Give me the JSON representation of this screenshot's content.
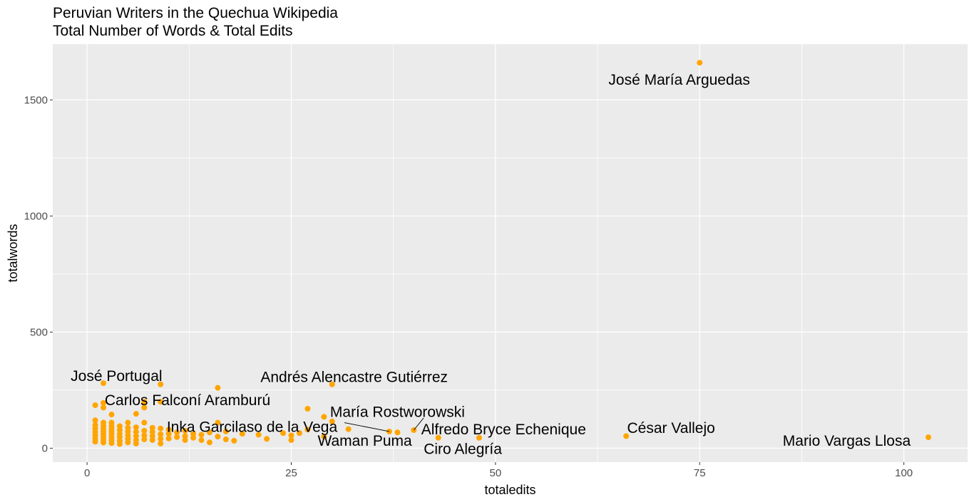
{
  "chart_data": {
    "type": "scatter",
    "title": "Peruvian Writers in the Quechua Wikipedia",
    "subtitle": "Total Number of Words & Total Edits",
    "xlabel": "totaledits",
    "ylabel": "totalwords",
    "xlim": [
      -4.2,
      107.8
    ],
    "ylim": [
      -60,
      1740
    ],
    "x_ticks": [
      0,
      25,
      50,
      75,
      100
    ],
    "y_ticks": [
      0,
      500,
      1000,
      1500
    ],
    "grid": true,
    "point_color": "#FFA500",
    "panel_color": "#EBEBEB",
    "grid_color": "#FFFFFF",
    "points": [
      {
        "x": 75,
        "y": 1660
      },
      {
        "x": 103,
        "y": 47
      },
      {
        "x": 66,
        "y": 52
      },
      {
        "x": 48,
        "y": 45
      },
      {
        "x": 43,
        "y": 45
      },
      {
        "x": 40,
        "y": 78
      },
      {
        "x": 38,
        "y": 68
      },
      {
        "x": 37,
        "y": 72
      },
      {
        "x": 32,
        "y": 82
      },
      {
        "x": 30,
        "y": 275
      },
      {
        "x": 30,
        "y": 115
      },
      {
        "x": 29,
        "y": 135
      },
      {
        "x": 29,
        "y": 50
      },
      {
        "x": 27,
        "y": 170
      },
      {
        "x": 27,
        "y": 80
      },
      {
        "x": 26,
        "y": 65
      },
      {
        "x": 25,
        "y": 55
      },
      {
        "x": 25,
        "y": 35
      },
      {
        "x": 24,
        "y": 65
      },
      {
        "x": 22,
        "y": 40
      },
      {
        "x": 21,
        "y": 58
      },
      {
        "x": 19,
        "y": 62
      },
      {
        "x": 18,
        "y": 32
      },
      {
        "x": 17,
        "y": 72
      },
      {
        "x": 17,
        "y": 38
      },
      {
        "x": 16,
        "y": 260
      },
      {
        "x": 16,
        "y": 110
      },
      {
        "x": 16,
        "y": 50
      },
      {
        "x": 15,
        "y": 68
      },
      {
        "x": 15,
        "y": 25
      },
      {
        "x": 14,
        "y": 58
      },
      {
        "x": 14,
        "y": 35
      },
      {
        "x": 13,
        "y": 62
      },
      {
        "x": 13,
        "y": 45
      },
      {
        "x": 12,
        "y": 75
      },
      {
        "x": 12,
        "y": 52
      },
      {
        "x": 12,
        "y": 35
      },
      {
        "x": 11,
        "y": 68
      },
      {
        "x": 11,
        "y": 48
      },
      {
        "x": 10,
        "y": 80
      },
      {
        "x": 10,
        "y": 62
      },
      {
        "x": 10,
        "y": 42
      },
      {
        "x": 9,
        "y": 275
      },
      {
        "x": 9,
        "y": 200
      },
      {
        "x": 9,
        "y": 85
      },
      {
        "x": 9,
        "y": 60
      },
      {
        "x": 9,
        "y": 40
      },
      {
        "x": 9,
        "y": 20
      },
      {
        "x": 8,
        "y": 88
      },
      {
        "x": 8,
        "y": 70
      },
      {
        "x": 8,
        "y": 52
      },
      {
        "x": 8,
        "y": 35
      },
      {
        "x": 7,
        "y": 200
      },
      {
        "x": 7,
        "y": 175
      },
      {
        "x": 7,
        "y": 110
      },
      {
        "x": 7,
        "y": 75
      },
      {
        "x": 7,
        "y": 55
      },
      {
        "x": 7,
        "y": 38
      },
      {
        "x": 6,
        "y": 148
      },
      {
        "x": 6,
        "y": 90
      },
      {
        "x": 6,
        "y": 70
      },
      {
        "x": 6,
        "y": 52
      },
      {
        "x": 6,
        "y": 35
      },
      {
        "x": 6,
        "y": 20
      },
      {
        "x": 5,
        "y": 110
      },
      {
        "x": 5,
        "y": 88
      },
      {
        "x": 5,
        "y": 72
      },
      {
        "x": 5,
        "y": 55
      },
      {
        "x": 5,
        "y": 40
      },
      {
        "x": 5,
        "y": 25
      },
      {
        "x": 4,
        "y": 95
      },
      {
        "x": 4,
        "y": 78
      },
      {
        "x": 4,
        "y": 62
      },
      {
        "x": 4,
        "y": 48
      },
      {
        "x": 4,
        "y": 32
      },
      {
        "x": 4,
        "y": 18
      },
      {
        "x": 3,
        "y": 145
      },
      {
        "x": 3,
        "y": 110
      },
      {
        "x": 3,
        "y": 95
      },
      {
        "x": 3,
        "y": 82
      },
      {
        "x": 3,
        "y": 70
      },
      {
        "x": 3,
        "y": 58
      },
      {
        "x": 3,
        "y": 46
      },
      {
        "x": 3,
        "y": 34
      },
      {
        "x": 3,
        "y": 22
      },
      {
        "x": 2,
        "y": 280
      },
      {
        "x": 2,
        "y": 195
      },
      {
        "x": 2,
        "y": 175
      },
      {
        "x": 2,
        "y": 110
      },
      {
        "x": 2,
        "y": 96
      },
      {
        "x": 2,
        "y": 84
      },
      {
        "x": 2,
        "y": 72
      },
      {
        "x": 2,
        "y": 60
      },
      {
        "x": 2,
        "y": 48
      },
      {
        "x": 2,
        "y": 36
      },
      {
        "x": 2,
        "y": 24
      },
      {
        "x": 1,
        "y": 185
      },
      {
        "x": 1,
        "y": 120
      },
      {
        "x": 1,
        "y": 100
      },
      {
        "x": 1,
        "y": 85
      },
      {
        "x": 1,
        "y": 70
      },
      {
        "x": 1,
        "y": 55
      },
      {
        "x": 1,
        "y": 40
      },
      {
        "x": 1,
        "y": 28
      }
    ],
    "annotations": [
      {
        "text": "José María Arguedas",
        "x": 75,
        "y": 1660,
        "label_x": 72.5,
        "label_y": 1565,
        "anchor": "middle"
      },
      {
        "text": "Mario Vargas Llosa",
        "x": 103,
        "y": 47,
        "label_x": 93,
        "label_y": 10,
        "anchor": "middle"
      },
      {
        "text": "César Vallejo",
        "x": 66,
        "y": 52,
        "label_x": 71.5,
        "label_y": 65,
        "anchor": "middle"
      },
      {
        "text": "Ciro Alegría",
        "x": 48,
        "y": 45,
        "label_x": 46,
        "label_y": -25,
        "anchor": "middle"
      },
      {
        "text": "Alfredo Bryce Echenique",
        "x": 40,
        "y": 78,
        "label_x": 51,
        "label_y": 60,
        "anchor": "middle",
        "line_to": [
          41,
          40,
          78
        ]
      },
      {
        "text": "Waman Puma",
        "x": 38,
        "y": 68,
        "label_x": 34,
        "label_y": 10,
        "anchor": "middle"
      },
      {
        "text": "María Rostworowski",
        "x": 40,
        "y": 78,
        "label_x": 38,
        "label_y": 135,
        "anchor": "middle",
        "line_to": [
          41.2,
          130,
          40,
          78
        ]
      },
      {
        "text": "Inka Garcilaso de la Vega",
        "x": 37,
        "y": 72,
        "label_x": 20.2,
        "label_y": 70,
        "anchor": "middle",
        "line_to": [
          31.5,
          110,
          37,
          72
        ]
      },
      {
        "text": "Andrés Alencastre Gutiérrez",
        "x": 30,
        "y": 275,
        "label_x": 32.7,
        "label_y": 285,
        "anchor": "middle"
      },
      {
        "text": "Carlos Falconí Aramburú",
        "x": 9,
        "y": 200,
        "label_x": 12.3,
        "label_y": 185,
        "anchor": "middle"
      },
      {
        "text": "José Portugal",
        "x": 2,
        "y": 280,
        "label_x": 3.6,
        "label_y": 290,
        "anchor": "middle"
      }
    ]
  }
}
